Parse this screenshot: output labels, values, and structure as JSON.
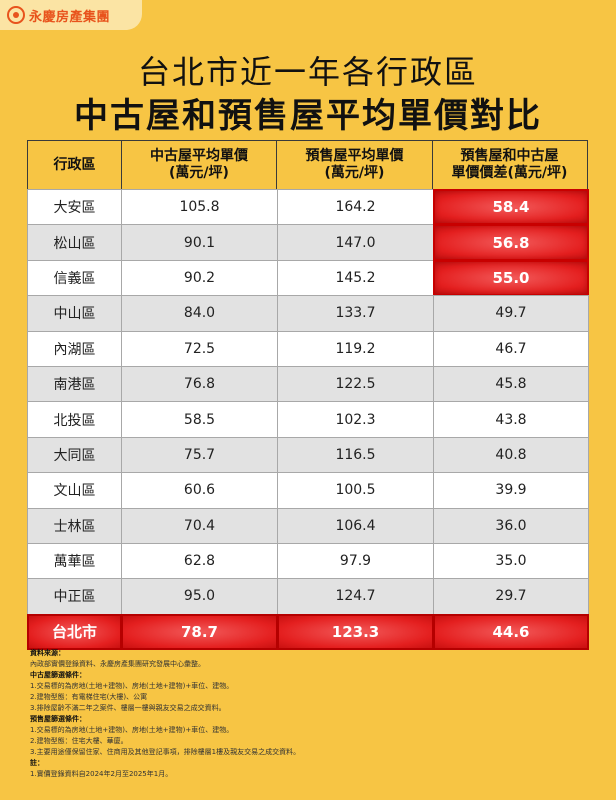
{
  "brand": {
    "logo_text": "永慶房產集團",
    "logo_color": "#e8531c"
  },
  "title_line1": "台北市近一年各行政區",
  "title_line2": "中古屋和預售屋平均單價對比",
  "columns": [
    "行政區",
    "中古屋平均單價\n(萬元/坪)",
    "預售屋平均單價\n(萬元/坪)",
    "預售屋和中古屋\n單價價差(萬元/坪)"
  ],
  "chart_data": {
    "type": "table",
    "title": "台北市近一年各行政區中古屋和預售屋平均單價對比",
    "categories": [
      "大安區",
      "松山區",
      "信義區",
      "中山區",
      "內湖區",
      "南港區",
      "北投區",
      "大同區",
      "文山區",
      "士林區",
      "萬華區",
      "中正區"
    ],
    "series": [
      {
        "name": "中古屋平均單價(萬元/坪)",
        "values": [
          "105.8",
          "90.1",
          "90.2",
          "84.0",
          "72.5",
          "76.8",
          "58.5",
          "75.7",
          "60.6",
          "70.4",
          "62.8",
          "95.0"
        ]
      },
      {
        "name": "預售屋平均單價(萬元/坪)",
        "values": [
          "164.2",
          "147.0",
          "145.2",
          "133.7",
          "119.2",
          "122.5",
          "102.3",
          "116.5",
          "100.5",
          "106.4",
          "97.9",
          "124.7"
        ]
      },
      {
        "name": "預售屋和中古屋單價價差(萬元/坪)",
        "values": [
          "58.4",
          "56.8",
          "55.0",
          "49.7",
          "46.7",
          "45.8",
          "43.8",
          "40.8",
          "39.9",
          "36.0",
          "35.0",
          "29.7"
        ]
      }
    ],
    "highlighted_rows": [
      0,
      1,
      2
    ],
    "total": {
      "name": "台北市",
      "values": [
        "78.7",
        "123.3",
        "44.6"
      ]
    },
    "highlight_color": "#e41f1f"
  },
  "notes": [
    {
      "bold": true,
      "text": "資料來源："
    },
    {
      "bold": false,
      "text": "內政部實價登錄資料、永慶房產集團研究發展中心彙整。"
    },
    {
      "bold": true,
      "text": "中古屋篩選條件："
    },
    {
      "bold": false,
      "text": "1.交易標的為房地(土地+建物)、房地(土地+建物)+車位、建物。"
    },
    {
      "bold": false,
      "text": "2.建物型態：有電梯住宅(大樓)、公寓"
    },
    {
      "bold": false,
      "text": "3.排除屋齡不滿二年之案件、樓層一樓與親友交易之成交資料。"
    },
    {
      "bold": true,
      "text": "預售屋篩選條件："
    },
    {
      "bold": false,
      "text": "1.交易標的為房地(土地+建物)、房地(土地+建物)+車位、建物。"
    },
    {
      "bold": false,
      "text": "2.建物型態：住宅大樓、華廈。"
    },
    {
      "bold": false,
      "text": "3.主要用途僅保留住家、住商用及其他登記事項，排除樓層1樓及親友交易之成交資料。"
    },
    {
      "bold": true,
      "text": "註："
    },
    {
      "bold": false,
      "text": "1.實價登錄資料自2024年2月至2025年1月。"
    }
  ]
}
